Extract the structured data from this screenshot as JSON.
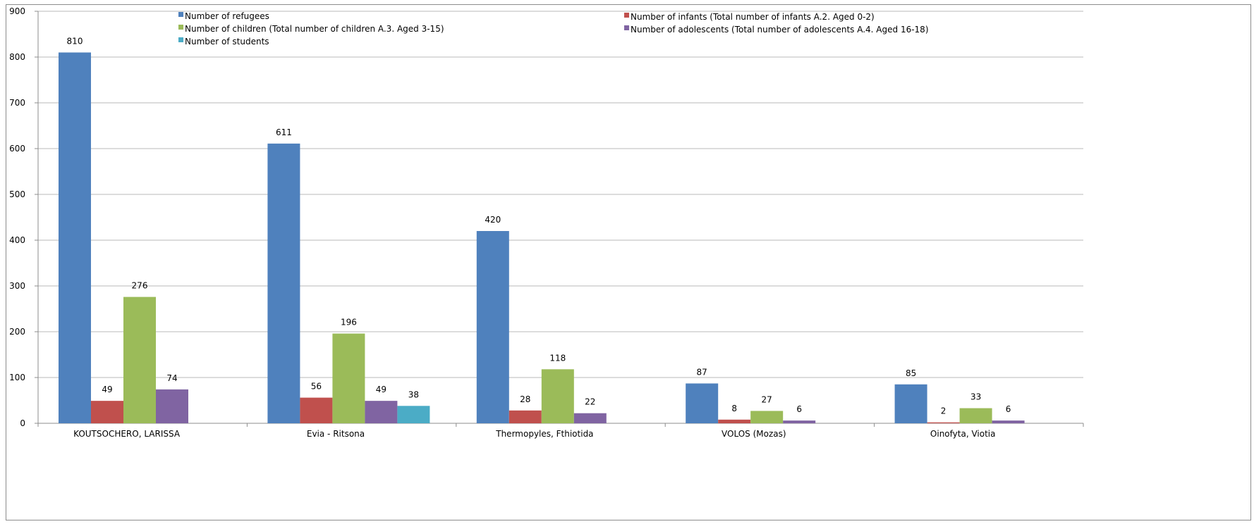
{
  "chart_data": {
    "type": "bar",
    "title": "",
    "xlabel": "",
    "ylabel": "",
    "ylim": [
      0,
      900
    ],
    "yticks": [
      0,
      100,
      200,
      300,
      400,
      500,
      600,
      700,
      800,
      900
    ],
    "grid": true,
    "legend_position": "top",
    "categories": [
      "KOUTSOCHERO, LARISSA",
      "Evia - Ritsona",
      "Thermopyles, Fthiotida",
      "VOLOS (Mozas)",
      "Oinofyta, Viotia"
    ],
    "series": [
      {
        "name": "Number of refugees",
        "color": "#4f81bd",
        "values": [
          810,
          611,
          420,
          87,
          85
        ]
      },
      {
        "name": "Number of infants (Total number of infants A.2. Aged 0-2)",
        "color": "#c0504d",
        "values": [
          49,
          56,
          28,
          8,
          2
        ]
      },
      {
        "name": "Number of children (Total number of children A.3. Aged 3-15)",
        "color": "#9bbb59",
        "values": [
          276,
          196,
          118,
          27,
          33
        ]
      },
      {
        "name": "Number of adolescents (Total number of adolescents A.4. Aged 16-18)",
        "color": "#8064a2",
        "values": [
          74,
          49,
          22,
          6,
          6
        ]
      },
      {
        "name": "Number of students",
        "color": "#4bacc6",
        "values": [
          0,
          38,
          0,
          0,
          0
        ]
      }
    ]
  }
}
